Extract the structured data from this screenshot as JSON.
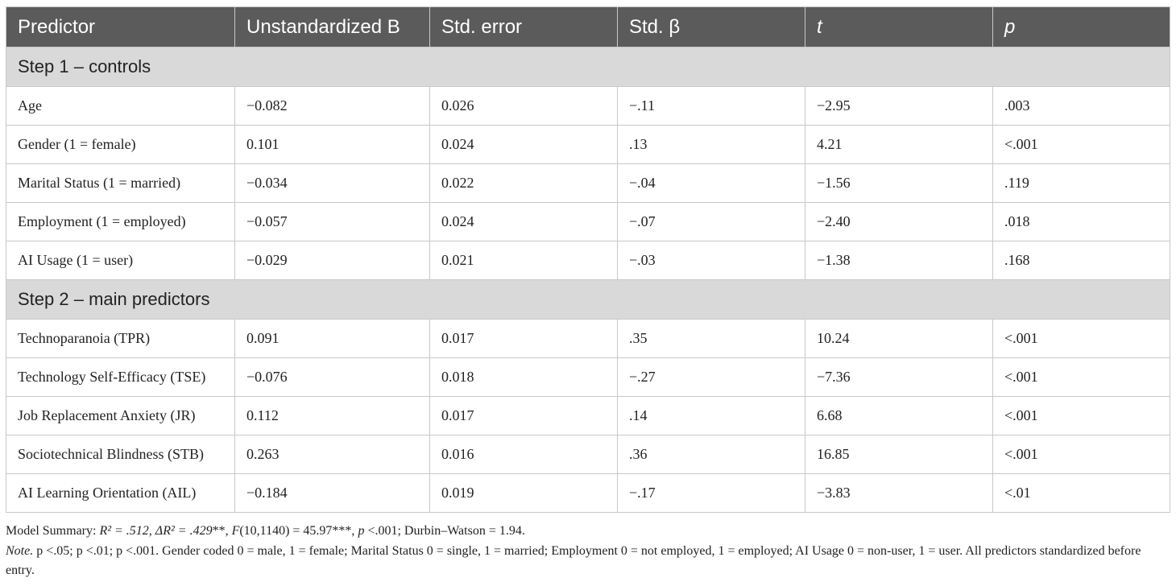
{
  "table": {
    "header": [
      "Predictor",
      "Unstandardized B",
      "Std. error",
      "Std. β",
      "t",
      "p"
    ],
    "sections": [
      {
        "title": "Step 1 – controls",
        "rows": [
          [
            "Age",
            "−0.082",
            "0.026",
            "−.11",
            "−2.95",
            ".003"
          ],
          [
            "Gender (1 = female)",
            "0.101",
            "0.024",
            ".13",
            "4.21",
            "<.001"
          ],
          [
            "Marital Status (1 = married)",
            "−0.034",
            "0.022",
            "−.04",
            "−1.56",
            ".119"
          ],
          [
            "Employment (1 = employed)",
            "−0.057",
            "0.024",
            "−.07",
            "−2.40",
            ".018"
          ],
          [
            "AI Usage (1 = user)",
            "−0.029",
            "0.021",
            "−.03",
            "−1.38",
            ".168"
          ]
        ]
      },
      {
        "title": "Step 2 – main predictors",
        "rows": [
          [
            "Technoparanoia (TPR)",
            "0.091",
            "0.017",
            ".35",
            "10.24",
            "<.001"
          ],
          [
            "Technology Self-Efficacy (TSE)",
            "−0.076",
            "0.018",
            "−.27",
            "−7.36",
            "<.001"
          ],
          [
            "Job Replacement Anxiety (JR)",
            "0.112",
            "0.017",
            ".14",
            "6.68",
            "<.001"
          ],
          [
            "Sociotechnical Blindness (STB)",
            "0.263",
            "0.016",
            ".36",
            "16.85",
            "<.001"
          ],
          [
            "AI Learning Orientation (AIL)",
            "−0.184",
            "0.019",
            "−.17",
            "−3.83",
            "<.01"
          ]
        ]
      }
    ]
  },
  "notes": {
    "summary": [
      "Model Summary: ",
      "R² = .512, ΔR² = .429",
      "**, ",
      "F",
      "(10,1140) = 45.97***, ",
      "p",
      " <.001; Durbin–Watson = 1.94."
    ],
    "note": [
      "Note.",
      " p <.05; p <.01; p <.001. Gender coded 0 = male, 1 = female; Marital Status 0 = single, 1 = married; Employment 0 = not employed, 1 = employed; AI Usage 0 = non-user, 1 = user. All predictors standardized before entry."
    ]
  }
}
